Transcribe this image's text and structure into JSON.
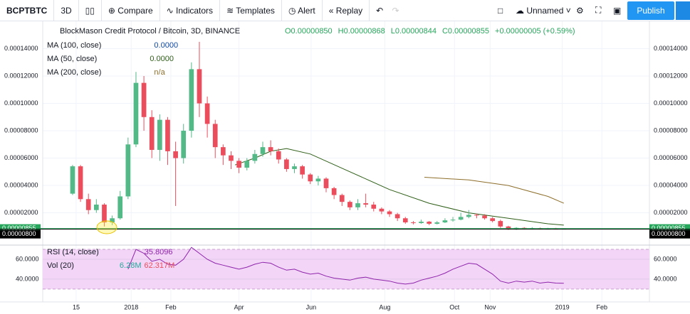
{
  "toolbar": {
    "symbol": "BCPTBTC",
    "interval": "3D",
    "compare": "Compare",
    "indicators": "Indicators",
    "templates": "Templates",
    "alert": "Alert",
    "replay": "Replay",
    "layout": "Unnamed",
    "publish": "Publish"
  },
  "chart_data": {
    "type": "candlestick",
    "title": "BlockMason Credit Protocol / Bitcoin, 3D, BINANCE",
    "ohlc_labels": [
      "O0.00000850",
      "H0.00000868",
      "L0.00000844",
      "C0.00000855"
    ],
    "change_label": "+0.00000005 (+0.59%)",
    "up_color": "#53b987",
    "down_color": "#eb4d5c",
    "open": [
      3.4e-05,
      5.4e-05,
      3e-05,
      2.2e-05,
      2.6e-05,
      1.3e-05,
      1.6e-05,
      3.2e-05,
      7e-05,
      0.000115,
      9e-05,
      6.6e-05,
      8.8e-05,
      6.5e-05,
      6e-05,
      8e-05,
      0.000125,
      0.0001,
      8.5e-05,
      6.8e-05,
      6.2e-05,
      5.8e-05,
      5.3e-05,
      5.8e-05,
      6.3e-05,
      6.8e-05,
      6.5e-05,
      5.9e-05,
      5.2e-05,
      5.4e-05,
      4.8e-05,
      4.3e-05,
      4.5e-05,
      3.8e-05,
      3.3e-05,
      2.8e-05,
      2.4e-05,
      2.7e-05,
      2.6e-05,
      2.3e-05,
      2.1e-05,
      1.9e-05,
      1.6e-05,
      1.3e-05,
      1.25e-05,
      1.35e-05,
      1.2e-05,
      1.3e-05,
      1.45e-05,
      1.5e-05,
      1.7e-05,
      1.85e-05,
      1.8e-05,
      1.6e-05,
      1.4e-05,
      1e-05,
      8e-06,
      9e-06,
      8.5e-06,
      8.8e-06,
      8.4e-06,
      8.6e-06,
      8.5e-06
    ],
    "high": [
      5.5e-05,
      5.5e-05,
      3.4e-05,
      3e-05,
      2.7e-05,
      1.8e-05,
      3.6e-05,
      7.5e-05,
      0.000123,
      0.00012,
      9.5e-05,
      9.2e-05,
      9e-05,
      7.2e-05,
      8.5e-05,
      0.00013,
      0.000145,
      0.000105,
      8.8e-05,
      7e-05,
      6.5e-05,
      6e-05,
      6e-05,
      6.6e-05,
      7.2e-05,
      7.3e-05,
      6.7e-05,
      6e-05,
      5.6e-05,
      5.5e-05,
      4.9e-05,
      4.7e-05,
      4.6e-05,
      3.9e-05,
      3.4e-05,
      2.9e-05,
      3e-05,
      3.4e-05,
      2.8e-05,
      2.4e-05,
      2.2e-05,
      2e-05,
      1.7e-05,
      1.4e-05,
      1.5e-05,
      1.4e-05,
      1.4e-05,
      1.6e-05,
      1.7e-05,
      2e-05,
      2.2e-05,
      1.95e-05,
      1.9e-05,
      1.7e-05,
      1.5e-05,
      1.05e-05,
      9.5e-06,
      9.5e-06,
      9.5e-06,
      9.2e-06,
      9e-06,
      9e-06,
      8.68e-06
    ],
    "low": [
      3.3e-05,
      2.8e-05,
      1.9e-05,
      2e-05,
      1e-05,
      1.1e-05,
      1.5e-05,
      3e-05,
      6.8e-05,
      8e-05,
      6e-05,
      5.8e-05,
      5.5e-05,
      2.5e-05,
      5.6e-05,
      7.5e-05,
      9e-05,
      7.5e-05,
      6e-05,
      5.5e-05,
      5.2e-05,
      4.9e-05,
      5.1e-05,
      5.6e-05,
      6.1e-05,
      6.2e-05,
      5.6e-05,
      5e-05,
      4.9e-05,
      4.5e-05,
      4.1e-05,
      4e-05,
      3.5e-05,
      3e-05,
      2.5e-05,
      2.2e-05,
      2.2e-05,
      2.4e-05,
      2.1e-05,
      1.9e-05,
      1.7e-05,
      1.4e-05,
      1.2e-05,
      1.15e-05,
      1.2e-05,
      1.1e-05,
      1.15e-05,
      1.25e-05,
      1.35e-05,
      1.45e-05,
      1.6e-05,
      1.6e-05,
      1.5e-05,
      1.3e-05,
      9e-06,
      7.5e-06,
      7.5e-06,
      8e-06,
      8e-06,
      8e-06,
      8e-06,
      8e-06,
      8.44e-06
    ],
    "close": [
      5.4e-05,
      3e-05,
      2.2e-05,
      2.6e-05,
      1.3e-05,
      1.6e-05,
      3.2e-05,
      7e-05,
      0.000115,
      9e-05,
      6.6e-05,
      8.8e-05,
      6.5e-05,
      6e-05,
      8e-05,
      0.000125,
      0.0001,
      8.5e-05,
      6.8e-05,
      6.2e-05,
      5.8e-05,
      5.3e-05,
      5.8e-05,
      6.3e-05,
      6.8e-05,
      6.5e-05,
      5.9e-05,
      5.2e-05,
      5.4e-05,
      4.8e-05,
      4.3e-05,
      4.5e-05,
      3.8e-05,
      3.3e-05,
      2.8e-05,
      2.4e-05,
      2.7e-05,
      2.6e-05,
      2.3e-05,
      2.1e-05,
      1.9e-05,
      1.6e-05,
      1.3e-05,
      1.25e-05,
      1.35e-05,
      1.2e-05,
      1.3e-05,
      1.45e-05,
      1.5e-05,
      1.7e-05,
      1.85e-05,
      1.8e-05,
      1.6e-05,
      1.4e-05,
      1e-05,
      8e-06,
      9e-06,
      8.5e-06,
      8.8e-06,
      8.4e-06,
      8.6e-06,
      8.5e-06,
      8.55e-06
    ],
    "xlim": [
      -3.77,
      72.8
    ],
    "xticks": [
      {
        "value": 0.45,
        "label": "15"
      },
      {
        "value": 7.4,
        "label": "2018"
      },
      {
        "value": 12.4,
        "label": "Feb"
      },
      {
        "value": 21.0,
        "label": "Apr"
      },
      {
        "value": 30.1,
        "label": "Jun"
      },
      {
        "value": 39.4,
        "label": "Aug"
      },
      {
        "value": 48.2,
        "label": "Oct"
      },
      {
        "value": 52.7,
        "label": "Nov"
      },
      {
        "value": 61.8,
        "label": "2019"
      },
      {
        "value": 66.8,
        "label": "Feb"
      }
    ],
    "ylim": [
      -3.6e-06,
      0.00016
    ],
    "yticks": [
      {
        "value": 2e-05,
        "label": "0.00002000"
      },
      {
        "value": 4e-05,
        "label": "0.00004000"
      },
      {
        "value": 6e-05,
        "label": "0.00006000"
      },
      {
        "value": 8e-05,
        "label": "0.00008000"
      },
      {
        "value": 0.0001,
        "label": "0.00010000"
      },
      {
        "value": 0.00012,
        "label": "0.00012000"
      },
      {
        "value": 0.00014,
        "label": "0.00014000"
      }
    ],
    "grid": true,
    "price_lines": [
      {
        "value": 8.55e-06,
        "label": "0.00000855",
        "color": "#26a65b"
      },
      {
        "value": 8e-06,
        "label": "0.00000800",
        "color": "#000000"
      }
    ],
    "indicators": [
      {
        "name": "MA (100, close)",
        "value": "0.0000",
        "color": "#0d47a1"
      },
      {
        "name": "MA (50, close)",
        "value": "0.0000",
        "color": "#2e5e17",
        "x": [
          20.5,
          23,
          25,
          27,
          30,
          35,
          40,
          45,
          50,
          55,
          60,
          62
        ],
        "values": [
          5.5e-05,
          6e-05,
          6.5e-05,
          6.7e-05,
          6.3e-05,
          5e-05,
          3.7e-05,
          2.7e-05,
          2e-05,
          1.6e-05,
          1.2e-05,
          1.1e-05
        ]
      },
      {
        "name": "MA (200, close)",
        "value": "n/a",
        "color": "#8d6e2a",
        "x": [
          44.4,
          50,
          55,
          60,
          62
        ],
        "values": [
          4.6e-05,
          4.4e-05,
          4e-05,
          3.2e-05,
          2.7e-05
        ]
      }
    ],
    "rsi": {
      "name": "RSI (14, close)",
      "value": "35.8096",
      "color": "#8e24aa",
      "band": [
        30,
        70
      ],
      "band_color": "#f3d6f7",
      "ylim": [
        17,
        74.3
      ],
      "yticks": [
        {
          "value": 60,
          "label": "60.0000"
        },
        {
          "value": 40,
          "label": "40.0000"
        }
      ],
      "values": [
        null,
        null,
        null,
        null,
        null,
        null,
        null,
        50,
        70,
        66,
        58,
        60,
        55,
        54,
        60,
        72,
        66,
        60,
        56,
        54,
        52,
        50,
        52,
        55,
        57,
        56,
        52,
        49,
        50,
        47,
        45,
        46,
        43,
        41,
        40,
        39,
        41,
        42,
        40,
        39,
        38,
        36,
        35,
        36,
        39,
        41,
        43,
        46,
        50,
        53,
        56,
        55,
        50,
        45,
        38,
        36,
        38,
        37,
        38,
        36,
        37,
        36,
        35.8096
      ]
    },
    "volume": {
      "name": "Vol (20)",
      "labels": [
        "6.28M",
        "62.317M"
      ]
    }
  }
}
